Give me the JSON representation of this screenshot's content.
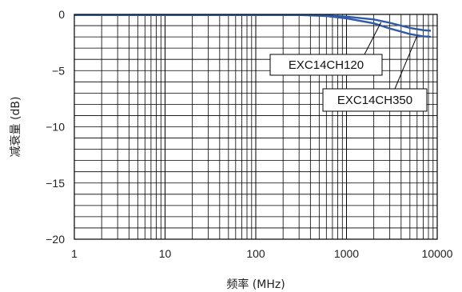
{
  "chart_data": {
    "type": "line",
    "xlabel": "频率 (MHz)",
    "ylabel": "减衰量 (dB)",
    "x_scale": "log",
    "xlim": [
      1,
      10000
    ],
    "ylim": [
      -20,
      0
    ],
    "x_ticks": [
      "1",
      "10",
      "100",
      "1000",
      "10000"
    ],
    "y_ticks": [
      "0",
      "−5",
      "−10",
      "−15",
      "−20"
    ],
    "grid": true,
    "legend": "callouts",
    "line_color": "#2f5aa8",
    "series": [
      {
        "name": "EXC14CH120",
        "x": [
          1,
          10,
          100,
          300,
          600,
          1000,
          2000,
          3000,
          5000,
          7000,
          8500
        ],
        "y": [
          -0.05,
          -0.05,
          -0.05,
          -0.05,
          -0.1,
          -0.2,
          -0.45,
          -0.75,
          -1.2,
          -1.4,
          -1.45
        ]
      },
      {
        "name": "EXC14CH350",
        "x": [
          1,
          10,
          100,
          300,
          600,
          1000,
          2000,
          3000,
          5000,
          7000,
          8500
        ],
        "y": [
          -0.05,
          -0.05,
          -0.05,
          -0.05,
          -0.15,
          -0.35,
          -0.8,
          -1.25,
          -1.75,
          -1.95,
          -2.0
        ]
      }
    ]
  }
}
